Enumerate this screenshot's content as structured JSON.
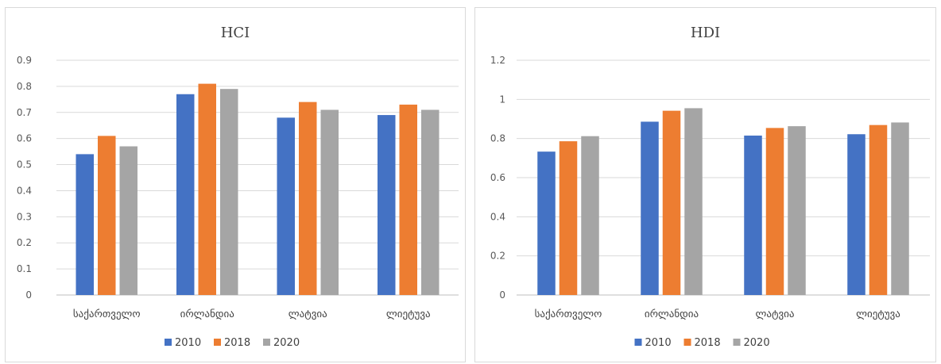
{
  "chart_data": [
    {
      "type": "bar",
      "title": "HCI",
      "categories": [
        "საქართველო",
        "ირლანდია",
        "ლატვია",
        "ლიეტუვა"
      ],
      "series": [
        {
          "name": "2010",
          "values": [
            0.54,
            0.77,
            0.68,
            0.69
          ]
        },
        {
          "name": "2018",
          "values": [
            0.61,
            0.81,
            0.74,
            0.73
          ]
        },
        {
          "name": "2020",
          "values": [
            0.57,
            0.79,
            0.71,
            0.71
          ]
        }
      ],
      "yticks": [
        "0",
        "0.1",
        "0.2",
        "0.3",
        "0.4",
        "0.5",
        "0.6",
        "0.7",
        "0.8",
        "0.9"
      ],
      "ylim": [
        0,
        0.9
      ],
      "grid": true,
      "legend_position": "bottom",
      "colors": [
        "#4472c4",
        "#ed7d31",
        "#a5a5a5"
      ]
    },
    {
      "type": "bar",
      "title": "HDI",
      "categories": [
        "საქართველო",
        "ირლანდია",
        "ლატვია",
        "ლიეტუვა"
      ],
      "series": [
        {
          "name": "2010",
          "values": [
            0.733,
            0.886,
            0.815,
            0.822
          ]
        },
        {
          "name": "2018",
          "values": [
            0.786,
            0.942,
            0.854,
            0.869
          ]
        },
        {
          "name": "2020",
          "values": [
            0.812,
            0.955,
            0.863,
            0.882
          ]
        }
      ],
      "yticks": [
        "0",
        "0.2",
        "0.4",
        "0.6",
        "0.8",
        "1",
        "1.2"
      ],
      "ylim": [
        0,
        1.2
      ],
      "grid": true,
      "legend_position": "bottom",
      "colors": [
        "#4472c4",
        "#ed7d31",
        "#a5a5a5"
      ]
    }
  ]
}
